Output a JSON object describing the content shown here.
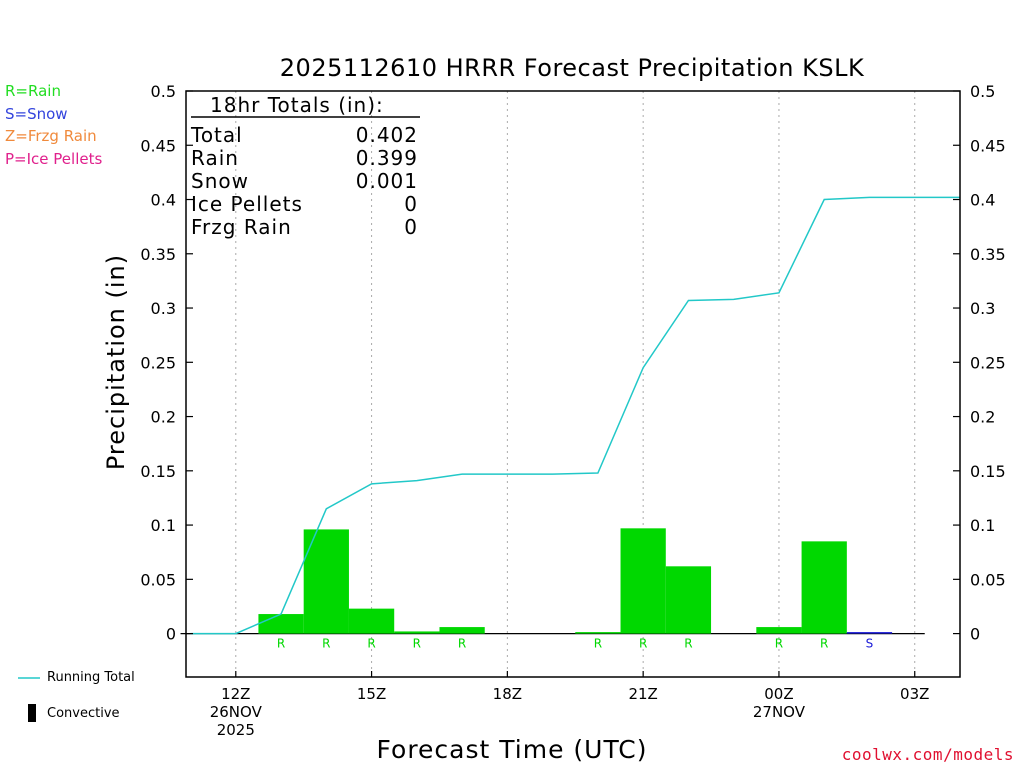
{
  "legend": {
    "rain": "R=Rain",
    "snow": "S=Snow",
    "frzg": "Z=Frzg Rain",
    "ice": "P=Ice Pellets"
  },
  "bottom_legend": {
    "running_total": "Running Total",
    "convective": "Convective"
  },
  "credit": "coolwx.com/models",
  "totals_box": {
    "title": "18hr Totals (in):",
    "rows": [
      {
        "label": "Total",
        "value": "0.402"
      },
      {
        "label": "Rain",
        "value": "0.399"
      },
      {
        "label": "Snow",
        "value": "0.001"
      },
      {
        "label": "Ice Pellets",
        "value": "0"
      },
      {
        "label": "Frzg Rain",
        "value": "0"
      }
    ]
  },
  "colors": {
    "rain": "#00d800",
    "snow": "#1a1ad8",
    "running_total": "#22c8c8",
    "grid": "#aaaaaa"
  },
  "chart_data": {
    "type": "bar",
    "title": "2025112610 HRRR Forecast Precipitation KSLK",
    "xlabel": "Forecast Time (UTC)",
    "ylabel": "Precipitation (in)",
    "ylim": [
      -0.04,
      0.5
    ],
    "yticks": [
      "0",
      "0.05",
      "0.1",
      "0.15",
      "0.2",
      "0.25",
      "0.3",
      "0.35",
      "0.4",
      "0.45",
      "0.5"
    ],
    "x_ticks": [
      {
        "hour": 12,
        "lines": [
          "12Z",
          "26NOV",
          "2025"
        ]
      },
      {
        "hour": 15,
        "lines": [
          "15Z"
        ]
      },
      {
        "hour": 18,
        "lines": [
          "18Z"
        ]
      },
      {
        "hour": 21,
        "lines": [
          "21Z"
        ]
      },
      {
        "hour": 24,
        "lines": [
          "00Z",
          "27NOV"
        ]
      },
      {
        "hour": 27,
        "lines": [
          "03Z"
        ]
      }
    ],
    "xlim_hours": [
      10.9,
      28.0
    ],
    "bars": [
      {
        "hour": 13,
        "value": 0.018,
        "ptype": "R"
      },
      {
        "hour": 14,
        "value": 0.096,
        "ptype": "R"
      },
      {
        "hour": 15,
        "value": 0.023,
        "ptype": "R"
      },
      {
        "hour": 16,
        "value": 0.002,
        "ptype": "R"
      },
      {
        "hour": 17,
        "value": 0.006,
        "ptype": "R"
      },
      {
        "hour": 18,
        "value": 0.0,
        "ptype": ""
      },
      {
        "hour": 19,
        "value": 0.0,
        "ptype": ""
      },
      {
        "hour": 20,
        "value": 0.001,
        "ptype": "R"
      },
      {
        "hour": 21,
        "value": 0.097,
        "ptype": "R"
      },
      {
        "hour": 22,
        "value": 0.062,
        "ptype": "R"
      },
      {
        "hour": 23,
        "value": 0.0,
        "ptype": ""
      },
      {
        "hour": 24,
        "value": 0.006,
        "ptype": "R"
      },
      {
        "hour": 25,
        "value": 0.085,
        "ptype": "R"
      },
      {
        "hour": 26,
        "value": 0.001,
        "ptype": "S"
      },
      {
        "hour": 27,
        "value": 0.0,
        "ptype": ""
      }
    ],
    "running_total": {
      "name": "Running Total",
      "points": [
        {
          "hour": 11,
          "value": 0.0
        },
        {
          "hour": 12,
          "value": 0.0
        },
        {
          "hour": 13,
          "value": 0.018
        },
        {
          "hour": 14,
          "value": 0.115
        },
        {
          "hour": 15,
          "value": 0.138
        },
        {
          "hour": 16,
          "value": 0.141
        },
        {
          "hour": 17,
          "value": 0.147
        },
        {
          "hour": 18,
          "value": 0.147
        },
        {
          "hour": 19,
          "value": 0.147
        },
        {
          "hour": 20,
          "value": 0.148
        },
        {
          "hour": 21,
          "value": 0.245
        },
        {
          "hour": 22,
          "value": 0.307
        },
        {
          "hour": 23,
          "value": 0.308
        },
        {
          "hour": 24,
          "value": 0.314
        },
        {
          "hour": 25,
          "value": 0.4
        },
        {
          "hour": 26,
          "value": 0.402
        },
        {
          "hour": 27,
          "value": 0.402
        },
        {
          "hour": 28,
          "value": 0.402
        }
      ]
    }
  }
}
